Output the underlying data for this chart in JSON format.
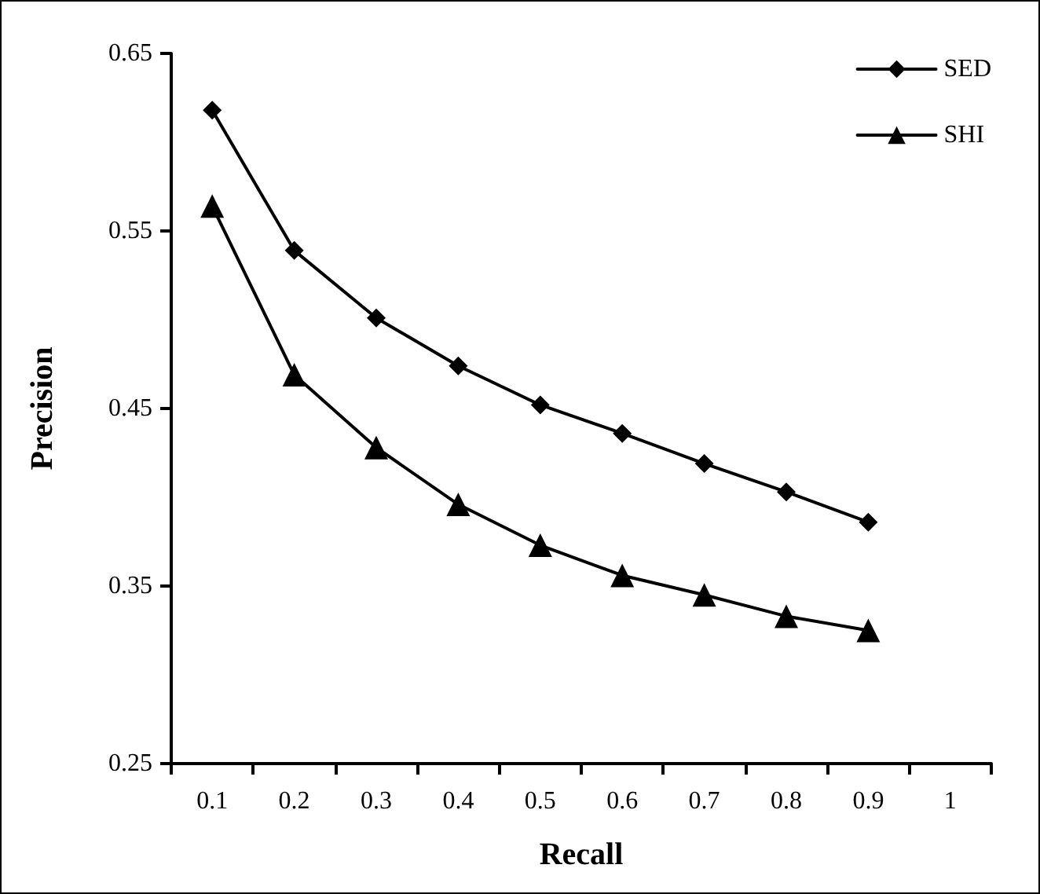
{
  "chart_data": {
    "type": "line",
    "xlabel": "Recall",
    "ylabel": "Precision",
    "categories": [
      "0.1",
      "0.2",
      "0.3",
      "0.4",
      "0.5",
      "0.6",
      "0.7",
      "0.8",
      "0.9",
      "1"
    ],
    "series": [
      {
        "name": "SED",
        "color": "#000000",
        "marker": "diamond",
        "values": [
          0.618,
          0.539,
          0.501,
          0.474,
          0.452,
          0.436,
          0.419,
          0.403,
          0.386,
          null
        ]
      },
      {
        "name": "SHI",
        "color": "#000000",
        "marker": "triangle",
        "values": [
          0.564,
          0.469,
          0.428,
          0.396,
          0.373,
          0.356,
          0.345,
          0.333,
          0.325,
          null
        ]
      }
    ],
    "ylim": [
      0.25,
      0.65
    ],
    "yticks": [
      0.25,
      0.35,
      0.45,
      0.55,
      0.65
    ],
    "grid": false,
    "legend": "top right",
    "line_style": "solid"
  }
}
